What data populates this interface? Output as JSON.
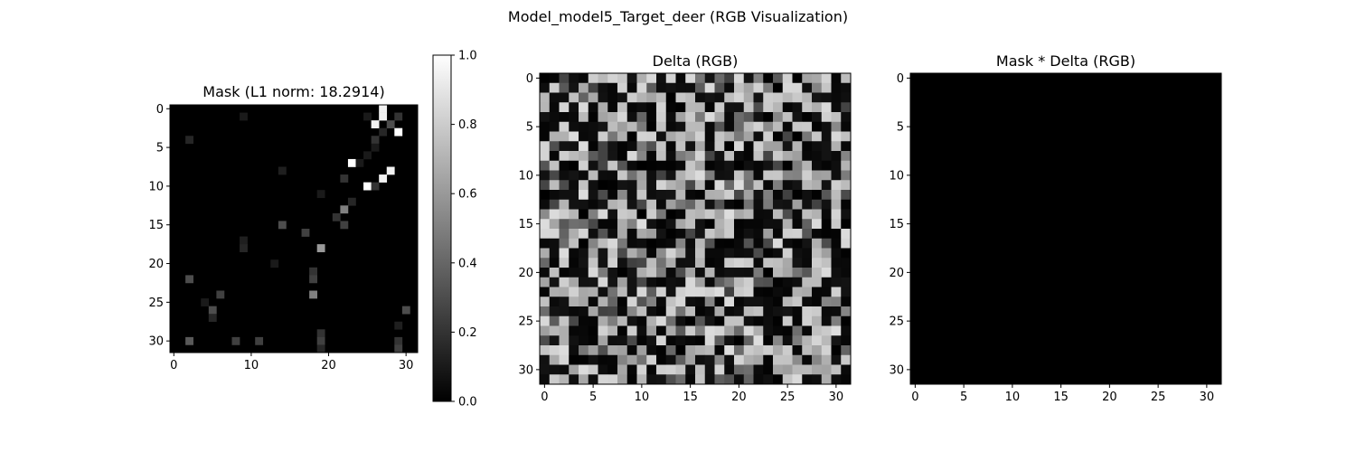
{
  "figure": {
    "title": "Model_model5_Target_deer (RGB Visualization)"
  },
  "chart_data": [
    {
      "type": "heatmap",
      "title": "Mask (L1 norm: 18.2914)",
      "xlabel": "",
      "ylabel": "",
      "rows": 32,
      "cols": 32,
      "xlim": [
        -0.5,
        31.5
      ],
      "ylim": [
        31.5,
        -0.5
      ],
      "xticks": [
        0,
        10,
        20,
        30
      ],
      "yticks": [
        0,
        5,
        10,
        15,
        20,
        25,
        30
      ],
      "colormap": "gray",
      "grid": false,
      "colorbar": {
        "range": [
          0,
          1
        ],
        "ticks": [
          "0.0",
          "0.2",
          "0.4",
          "0.6",
          "0.8",
          "1.0"
        ]
      },
      "cells": [
        {
          "r": 0,
          "c": 27,
          "v": 0.95
        },
        {
          "r": 1,
          "c": 27,
          "v": 0.95
        },
        {
          "r": 1,
          "c": 25,
          "v": 0.1
        },
        {
          "r": 1,
          "c": 29,
          "v": 0.2
        },
        {
          "r": 2,
          "c": 26,
          "v": 0.95
        },
        {
          "r": 2,
          "c": 28,
          "v": 0.3
        },
        {
          "r": 3,
          "c": 29,
          "v": 1.0
        },
        {
          "r": 3,
          "c": 27,
          "v": 0.15
        },
        {
          "r": 4,
          "c": 26,
          "v": 0.2
        },
        {
          "r": 5,
          "c": 26,
          "v": 0.1
        },
        {
          "r": 4,
          "c": 2,
          "v": 0.15
        },
        {
          "r": 1,
          "c": 9,
          "v": 0.1
        },
        {
          "r": 6,
          "c": 25,
          "v": 0.1
        },
        {
          "r": 7,
          "c": 23,
          "v": 1.0
        },
        {
          "r": 7,
          "c": 24,
          "v": 0.1
        },
        {
          "r": 8,
          "c": 28,
          "v": 0.95
        },
        {
          "r": 8,
          "c": 14,
          "v": 0.12
        },
        {
          "r": 9,
          "c": 27,
          "v": 0.95
        },
        {
          "r": 9,
          "c": 22,
          "v": 0.2
        },
        {
          "r": 10,
          "c": 25,
          "v": 1.0
        },
        {
          "r": 10,
          "c": 26,
          "v": 0.2
        },
        {
          "r": 11,
          "c": 19,
          "v": 0.1
        },
        {
          "r": 12,
          "c": 23,
          "v": 0.15
        },
        {
          "r": 13,
          "c": 22,
          "v": 0.5
        },
        {
          "r": 14,
          "c": 21,
          "v": 0.2
        },
        {
          "r": 15,
          "c": 14,
          "v": 0.3
        },
        {
          "r": 15,
          "c": 22,
          "v": 0.25
        },
        {
          "r": 16,
          "c": 17,
          "v": 0.25
        },
        {
          "r": 17,
          "c": 9,
          "v": 0.12
        },
        {
          "r": 18,
          "c": 9,
          "v": 0.15
        },
        {
          "r": 18,
          "c": 19,
          "v": 0.6
        },
        {
          "r": 20,
          "c": 13,
          "v": 0.1
        },
        {
          "r": 21,
          "c": 18,
          "v": 0.2
        },
        {
          "r": 22,
          "c": 2,
          "v": 0.3
        },
        {
          "r": 22,
          "c": 18,
          "v": 0.25
        },
        {
          "r": 24,
          "c": 6,
          "v": 0.25
        },
        {
          "r": 24,
          "c": 18,
          "v": 0.5
        },
        {
          "r": 25,
          "c": 4,
          "v": 0.1
        },
        {
          "r": 26,
          "c": 5,
          "v": 0.3
        },
        {
          "r": 26,
          "c": 30,
          "v": 0.3
        },
        {
          "r": 27,
          "c": 5,
          "v": 0.15
        },
        {
          "r": 28,
          "c": 29,
          "v": 0.12
        },
        {
          "r": 29,
          "c": 19,
          "v": 0.2
        },
        {
          "r": 30,
          "c": 2,
          "v": 0.35
        },
        {
          "r": 30,
          "c": 8,
          "v": 0.25
        },
        {
          "r": 30,
          "c": 11,
          "v": 0.25
        },
        {
          "r": 30,
          "c": 19,
          "v": 0.25
        },
        {
          "r": 30,
          "c": 29,
          "v": 0.2
        },
        {
          "r": 31,
          "c": 19,
          "v": 0.15
        },
        {
          "r": 31,
          "c": 29,
          "v": 0.25
        }
      ]
    },
    {
      "type": "heatmap",
      "title": "Delta (RGB)",
      "xlabel": "",
      "ylabel": "",
      "rows": 32,
      "cols": 32,
      "xlim": [
        -0.5,
        31.5
      ],
      "ylim": [
        31.5,
        -0.5
      ],
      "xticks": [
        0,
        5,
        10,
        15,
        20,
        25,
        30
      ],
      "yticks": [
        0,
        5,
        10,
        15,
        20,
        25,
        30
      ],
      "colormap": "gray",
      "grid": false,
      "pattern": "dense random texture of near-black and light-gray pixels (values ~0.0–0.85)"
    },
    {
      "type": "heatmap",
      "title": "Mask * Delta (RGB)",
      "xlabel": "",
      "ylabel": "",
      "rows": 32,
      "cols": 32,
      "xlim": [
        -0.5,
        31.5
      ],
      "ylim": [
        31.5,
        -0.5
      ],
      "xticks": [
        0,
        5,
        10,
        15,
        20,
        25,
        30
      ],
      "yticks": [
        0,
        5,
        10,
        15,
        20,
        25,
        30
      ],
      "colormap": "gray",
      "grid": false,
      "fill": 0.0
    }
  ]
}
